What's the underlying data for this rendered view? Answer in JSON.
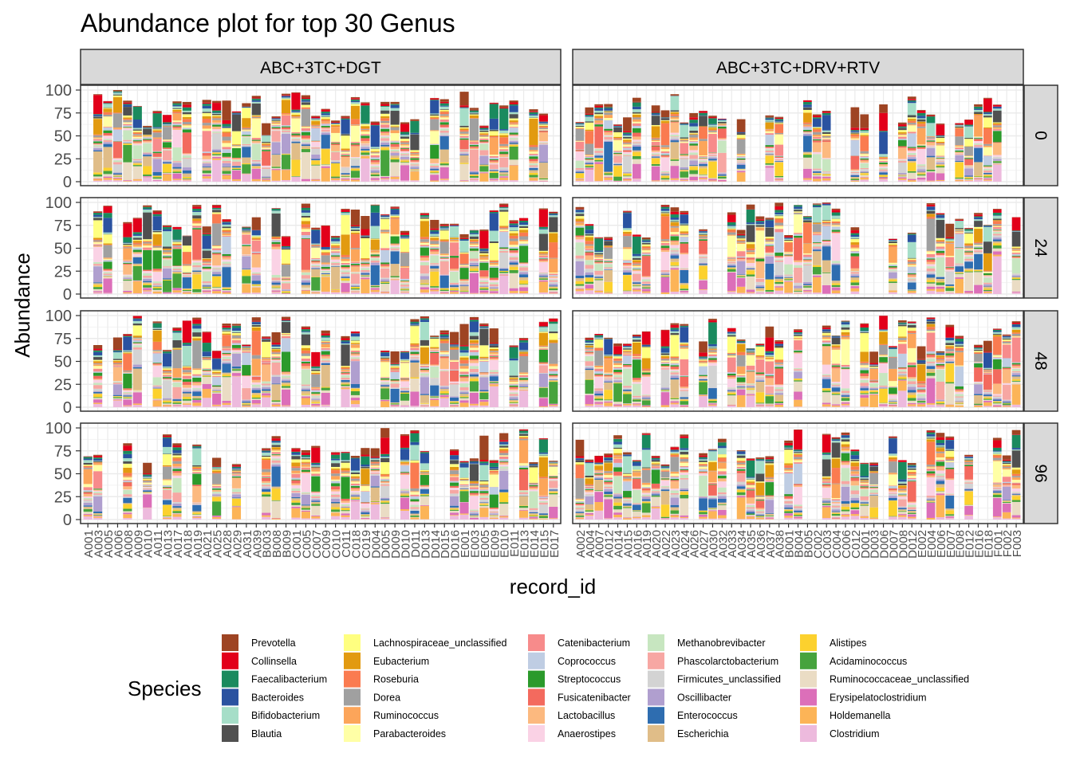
{
  "chart_data": {
    "type": "bar",
    "stacked": true,
    "title": "Abundance plot for top 30 Genus",
    "xlabel": "record_id",
    "ylabel": "Abundance",
    "ylim": [
      0,
      100
    ],
    "yticks": [
      0,
      25,
      50,
      75,
      100
    ],
    "grid": true,
    "legend_position": "bottom",
    "legend_title": "Species",
    "facet_cols": [
      "ABC+3TC+DGT",
      "ABC+3TC+DRV+RTV"
    ],
    "facet_rows": [
      "0",
      "24",
      "48",
      "96"
    ],
    "x_categories": [
      [
        "A001",
        "A003",
        "A005",
        "A006",
        "A008",
        "A009",
        "A010",
        "A011",
        "A013",
        "A017",
        "A018",
        "A019",
        "A021",
        "A025",
        "A028",
        "A029",
        "A031",
        "A039",
        "B003",
        "B008",
        "B009",
        "C001",
        "C005",
        "C007",
        "C009",
        "C010",
        "C011",
        "C018",
        "C019",
        "D004",
        "D005",
        "D009",
        "D010",
        "D011",
        "D013",
        "D014",
        "D015",
        "D016",
        "E001",
        "E003",
        "E005",
        "E009",
        "E010",
        "E011",
        "E013",
        "E014",
        "E015",
        "E017"
      ],
      [
        "A002",
        "A004",
        "A007",
        "A012",
        "A014",
        "A015",
        "A016",
        "A019",
        "A020",
        "A022",
        "A023",
        "A024",
        "A026",
        "A027",
        "A030",
        "A032",
        "A033",
        "A034",
        "A035",
        "A036",
        "A037",
        "A038",
        "B001",
        "B004",
        "B005",
        "C002",
        "C003",
        "C004",
        "C006",
        "C012",
        "D001",
        "D003",
        "D006",
        "D007",
        "D008",
        "D012",
        "E002",
        "E004",
        "E006",
        "E007",
        "E008",
        "E012",
        "E016",
        "E018",
        "F001",
        "F002",
        "F003"
      ]
    ],
    "species": [
      {
        "name": "Prevotella",
        "color": "#9E4423"
      },
      {
        "name": "Collinsella",
        "color": "#E2001A"
      },
      {
        "name": "Faecalibacterium",
        "color": "#1A8A5E"
      },
      {
        "name": "Bacteroides",
        "color": "#2A52A0"
      },
      {
        "name": "Bifidobacterium",
        "color": "#A6DEC8"
      },
      {
        "name": "Blautia",
        "color": "#505050"
      },
      {
        "name": "Lachnospiraceae_unclassified",
        "color": "#FFFF80"
      },
      {
        "name": "Eubacterium",
        "color": "#E29A10"
      },
      {
        "name": "Roseburia",
        "color": "#FA7B50"
      },
      {
        "name": "Dorea",
        "color": "#A0A0A0"
      },
      {
        "name": "Ruminococcus",
        "color": "#FCA55A"
      },
      {
        "name": "Parabacteroides",
        "color": "#FFFFA6"
      },
      {
        "name": "Catenibacterium",
        "color": "#F78B8B"
      },
      {
        "name": "Coprococcus",
        "color": "#BFCDE3"
      },
      {
        "name": "Streptococcus",
        "color": "#2B9A2B"
      },
      {
        "name": "Fusicatenibacter",
        "color": "#F36A5E"
      },
      {
        "name": "Lactobacillus",
        "color": "#FCB97F"
      },
      {
        "name": "Anaerostipes",
        "color": "#FAD2E5"
      },
      {
        "name": "Methanobrevibacter",
        "color": "#C7E6C0"
      },
      {
        "name": "Phascolarctobacterium",
        "color": "#F7A7A3"
      },
      {
        "name": "Firmicutes_unclassified",
        "color": "#D3D3D3"
      },
      {
        "name": "Oscillibacter",
        "color": "#B09FCF"
      },
      {
        "name": "Enterococcus",
        "color": "#2E6DB0"
      },
      {
        "name": "Escherichia",
        "color": "#E0BD88"
      },
      {
        "name": "Alistipes",
        "color": "#FCD12E"
      },
      {
        "name": "Acidaminococcus",
        "color": "#46A33D"
      },
      {
        "name": "Ruminococcaceae_unclassified",
        "color": "#EADCC4"
      },
      {
        "name": "Erysipelatoclostridium",
        "color": "#DC6FB9"
      },
      {
        "name": "Holdemanella",
        "color": "#FCB457"
      },
      {
        "name": "Clostridium",
        "color": "#EDBADD"
      }
    ]
  }
}
